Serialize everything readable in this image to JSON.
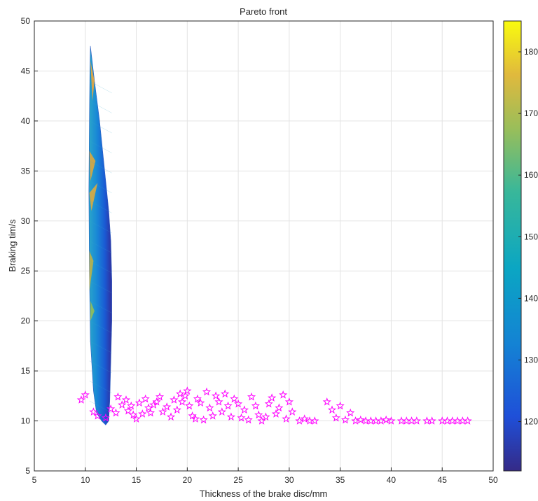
{
  "chart_data": {
    "type": "scatter",
    "title": "Pareto front",
    "xlabel": "Thickness of the brake disc/mm",
    "ylabel": "Braking tim/s",
    "xlim": [
      5,
      50
    ],
    "ylim": [
      5,
      50
    ],
    "xticks": [
      "5",
      "10",
      "15",
      "20",
      "25",
      "30",
      "35",
      "40",
      "45",
      "50"
    ],
    "yticks": [
      "5",
      "10",
      "15",
      "20",
      "25",
      "30",
      "35",
      "40",
      "45",
      "50"
    ],
    "grid": true,
    "colorbar": {
      "ticks": [
        "120",
        "130",
        "140",
        "150",
        "160",
        "170",
        "180"
      ],
      "tick_values": [
        120,
        130,
        140,
        150,
        160,
        170,
        180
      ],
      "range": [
        112,
        185
      ]
    },
    "surface": {
      "type": "area",
      "description_colors": [
        "#352a87",
        "#1f5fd1",
        "#17a3c8",
        "#6cc06b",
        "#f2b93a",
        "#f9f91b"
      ],
      "outline": [
        [
          10.5,
          47.5
        ],
        [
          10.9,
          44
        ],
        [
          11.4,
          40
        ],
        [
          11.9,
          35
        ],
        [
          12.3,
          31
        ],
        [
          12.5,
          28
        ],
        [
          12.6,
          24
        ],
        [
          12.6,
          20
        ],
        [
          12.5,
          16
        ],
        [
          12.4,
          12
        ],
        [
          12.3,
          10
        ],
        [
          12.0,
          9.6
        ],
        [
          11.6,
          10
        ],
        [
          11.1,
          10.8
        ],
        [
          10.8,
          13
        ],
        [
          10.5,
          18
        ],
        [
          10.4,
          25
        ],
        [
          10.35,
          33
        ],
        [
          10.4,
          40
        ],
        [
          10.45,
          45
        ]
      ],
      "bands": [
        {
          "x": [
            10.35,
            10.9
          ],
          "color": "#2ea2cf"
        },
        {
          "x": [
            10.9,
            11.5
          ],
          "color": "#1486d6"
        },
        {
          "x": [
            11.5,
            12.0
          ],
          "color": "#1467d9"
        },
        {
          "x": [
            12.0,
            12.6
          ],
          "color": "#2a3fc0"
        }
      ],
      "highlights": [
        {
          "points": [
            [
              10.5,
              46
            ],
            [
              10.9,
              44
            ],
            [
              10.7,
              42
            ]
          ],
          "color": "#f4a735"
        },
        {
          "points": [
            [
              10.4,
              37
            ],
            [
              11.0,
              36
            ],
            [
              10.5,
              34
            ]
          ],
          "color": "#e6a835"
        },
        {
          "points": [
            [
              10.4,
              32.8
            ],
            [
              11.2,
              33.8
            ],
            [
              10.6,
              31
            ]
          ],
          "color": "#e8ab35"
        },
        {
          "points": [
            [
              10.4,
              27
            ],
            [
              10.8,
              26
            ],
            [
              10.4,
              23
            ]
          ],
          "color": "#c6b340"
        },
        {
          "points": [
            [
              10.5,
              22
            ],
            [
              10.9,
              21
            ],
            [
              10.5,
              20
            ]
          ],
          "color": "#9abf52"
        }
      ]
    },
    "series": [
      {
        "marker": "pentagram",
        "color": "#ff00ff",
        "points": [
          [
            9.6,
            12.1
          ],
          [
            10.0,
            12.6
          ],
          [
            10.8,
            10.9
          ],
          [
            11.2,
            10.5
          ],
          [
            12.0,
            10.3
          ],
          [
            12.5,
            11.2
          ],
          [
            13.0,
            10.8
          ],
          [
            13.2,
            12.4
          ],
          [
            13.6,
            11.6
          ],
          [
            14.0,
            12.1
          ],
          [
            14.2,
            11.0
          ],
          [
            14.5,
            11.5
          ],
          [
            14.7,
            10.6
          ],
          [
            15.0,
            10.2
          ],
          [
            15.3,
            11.8
          ],
          [
            15.6,
            10.7
          ],
          [
            15.9,
            12.2
          ],
          [
            16.2,
            11.3
          ],
          [
            16.4,
            10.8
          ],
          [
            16.7,
            11.6
          ],
          [
            17.0,
            11.9
          ],
          [
            17.3,
            12.4
          ],
          [
            17.6,
            10.9
          ],
          [
            18.0,
            11.4
          ],
          [
            18.4,
            10.4
          ],
          [
            18.7,
            12.1
          ],
          [
            19.0,
            11.1
          ],
          [
            19.3,
            12.7
          ],
          [
            19.5,
            11.9
          ],
          [
            19.8,
            12.5
          ],
          [
            20.0,
            13.0
          ],
          [
            20.2,
            11.5
          ],
          [
            20.5,
            10.5
          ],
          [
            20.8,
            10.2
          ],
          [
            21.0,
            12.2
          ],
          [
            21.3,
            11.8
          ],
          [
            21.6,
            10.1
          ],
          [
            21.9,
            12.9
          ],
          [
            22.2,
            11.3
          ],
          [
            22.5,
            10.5
          ],
          [
            22.8,
            12.5
          ],
          [
            23.1,
            11.9
          ],
          [
            23.4,
            10.9
          ],
          [
            23.7,
            12.7
          ],
          [
            24.0,
            11.5
          ],
          [
            24.3,
            10.4
          ],
          [
            24.6,
            12.2
          ],
          [
            25.0,
            11.7
          ],
          [
            25.3,
            10.3
          ],
          [
            25.6,
            11.1
          ],
          [
            26.0,
            10.1
          ],
          [
            26.3,
            12.4
          ],
          [
            26.7,
            11.5
          ],
          [
            27.0,
            10.6
          ],
          [
            27.3,
            10.0
          ],
          [
            27.7,
            10.4
          ],
          [
            28.0,
            11.7
          ],
          [
            28.3,
            12.3
          ],
          [
            28.7,
            10.7
          ],
          [
            29.0,
            11.3
          ],
          [
            29.4,
            12.6
          ],
          [
            29.7,
            10.2
          ],
          [
            30.0,
            11.9
          ],
          [
            30.3,
            10.9
          ],
          [
            31.0,
            10.0
          ],
          [
            31.5,
            10.2
          ],
          [
            32.0,
            10.0
          ],
          [
            32.5,
            10.0
          ],
          [
            33.7,
            11.9
          ],
          [
            34.2,
            11.1
          ],
          [
            34.6,
            10.3
          ],
          [
            35.0,
            11.5
          ],
          [
            35.5,
            10.1
          ],
          [
            36.0,
            10.8
          ],
          [
            36.5,
            10.0
          ],
          [
            37.0,
            10.1
          ],
          [
            37.5,
            10.0
          ],
          [
            38.0,
            10.0
          ],
          [
            38.5,
            10.0
          ],
          [
            39.0,
            10.0
          ],
          [
            39.5,
            10.1
          ],
          [
            40.0,
            10.0
          ],
          [
            41.0,
            10.0
          ],
          [
            41.5,
            10.0
          ],
          [
            42.0,
            10.0
          ],
          [
            42.5,
            10.0
          ],
          [
            43.5,
            10.0
          ],
          [
            44.0,
            10.0
          ],
          [
            45.0,
            10.0
          ],
          [
            45.5,
            10.0
          ],
          [
            46.0,
            10.0
          ],
          [
            46.5,
            10.0
          ],
          [
            47.0,
            10.0
          ],
          [
            47.5,
            10.0
          ]
        ]
      }
    ]
  }
}
